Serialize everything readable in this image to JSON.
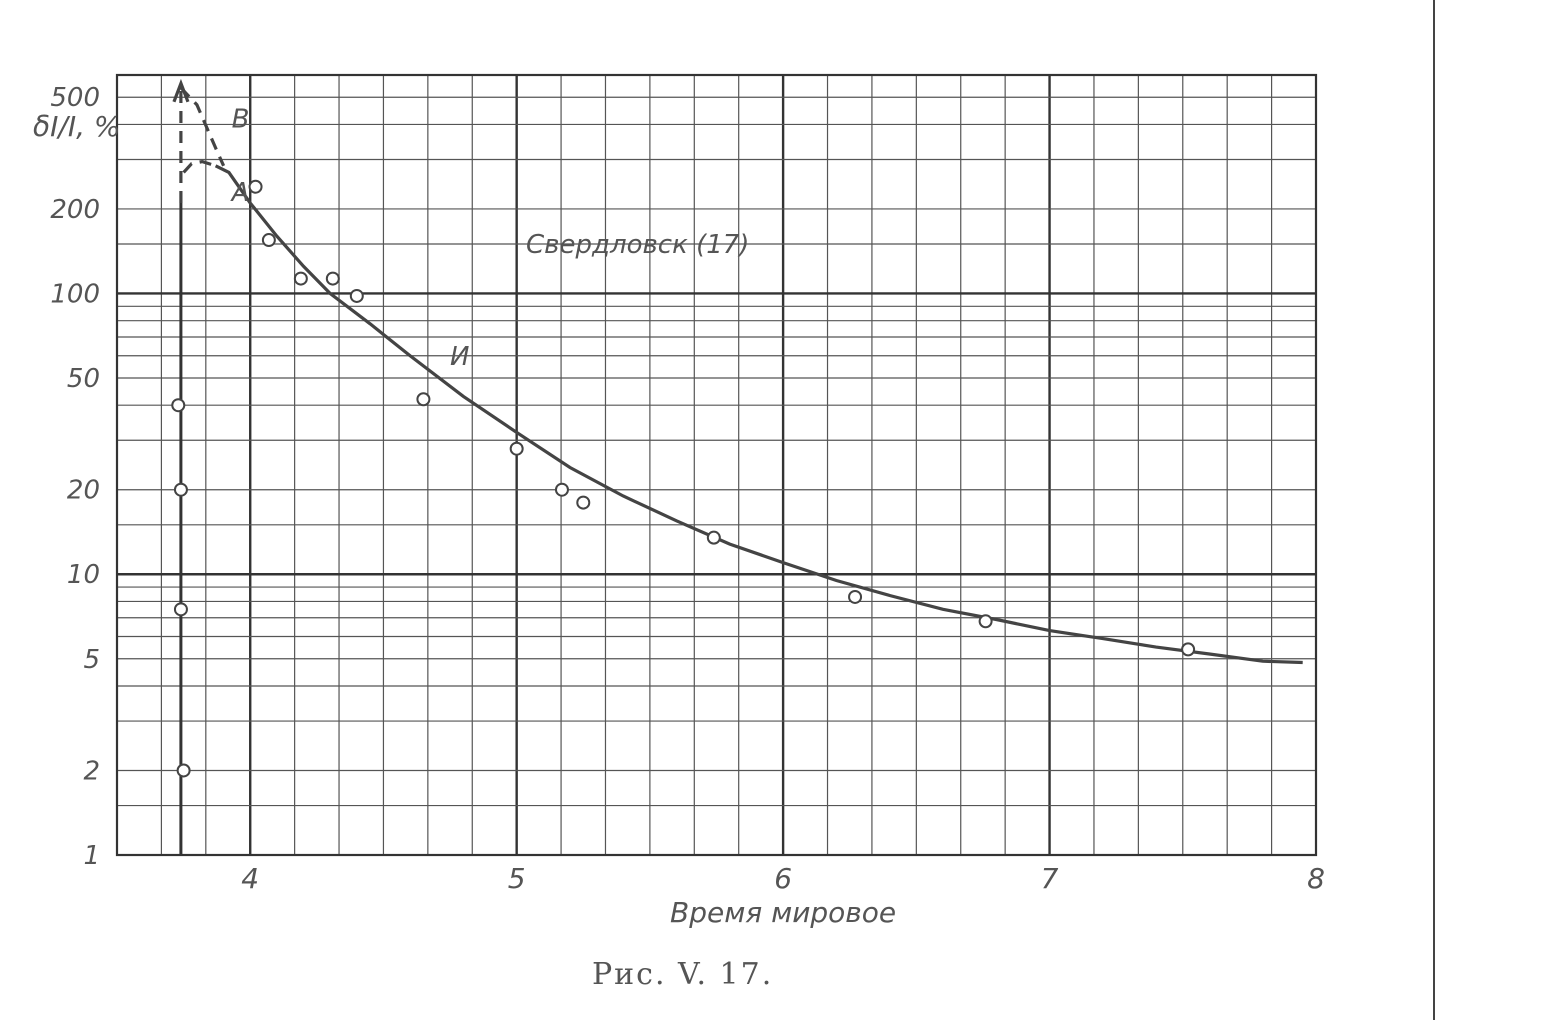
{
  "chart_data": {
    "type": "line",
    "title": "Свердловск (17)",
    "xlabel": "Время мировое",
    "ylabel": "δI/I, %",
    "caption": "Рис. V. 17.",
    "x_ticks": [
      "4",
      "5",
      "6",
      "7",
      "8"
    ],
    "y_ticks": [
      "1",
      "2",
      "5",
      "10",
      "20",
      "50",
      "100",
      "200",
      "500"
    ],
    "y_scale": "log",
    "xlim": [
      3.5,
      8.0
    ],
    "ylim": [
      1,
      600
    ],
    "grid": true,
    "annotations": [
      {
        "label": "В",
        "x": 3.93,
        "y": 420
      },
      {
        "label": "А",
        "x": 3.93,
        "y": 230
      },
      {
        "label": "И",
        "x": 4.75,
        "y": 60
      }
    ],
    "series": [
      {
        "name": "И",
        "kind": "curve",
        "points": [
          [
            3.87,
            285
          ],
          [
            3.92,
            270
          ],
          [
            4.0,
            210
          ],
          [
            4.1,
            160
          ],
          [
            4.2,
            125
          ],
          [
            4.3,
            100
          ],
          [
            4.45,
            78
          ],
          [
            4.6,
            60
          ],
          [
            4.8,
            43
          ],
          [
            5.0,
            32
          ],
          [
            5.2,
            24
          ],
          [
            5.4,
            19
          ],
          [
            5.6,
            15.5
          ],
          [
            5.8,
            12.8
          ],
          [
            6.0,
            11
          ],
          [
            6.2,
            9.5
          ],
          [
            6.4,
            8.4
          ],
          [
            6.6,
            7.5
          ],
          [
            6.8,
            6.9
          ],
          [
            7.0,
            6.3
          ],
          [
            7.2,
            5.9
          ],
          [
            7.4,
            5.5
          ],
          [
            7.6,
            5.2
          ],
          [
            7.8,
            4.9
          ],
          [
            7.95,
            4.85
          ]
        ]
      },
      {
        "name": "А",
        "kind": "dashed",
        "points": [
          [
            3.75,
            270
          ],
          [
            3.78,
            290
          ],
          [
            3.82,
            295
          ],
          [
            3.87,
            285
          ]
        ]
      },
      {
        "name": "В",
        "kind": "dashed",
        "points": [
          [
            3.74,
            540
          ],
          [
            3.8,
            470
          ],
          [
            3.87,
            330
          ],
          [
            3.9,
            285
          ]
        ]
      },
      {
        "name": "",
        "kind": "dashed-vertical",
        "points": [
          [
            3.74,
            210
          ],
          [
            3.74,
            540
          ]
        ]
      },
      {
        "name": "",
        "kind": "vertical",
        "points": [
          [
            3.74,
            1
          ],
          [
            3.74,
            210
          ]
        ]
      },
      {
        "name": "",
        "kind": "scatter",
        "points": [
          [
            3.73,
            40
          ],
          [
            3.74,
            20
          ],
          [
            3.74,
            7.5
          ],
          [
            3.75,
            2
          ],
          [
            4.02,
            240
          ],
          [
            4.07,
            155
          ],
          [
            4.19,
            113
          ],
          [
            4.31,
            113
          ],
          [
            4.4,
            98
          ],
          [
            4.65,
            42
          ],
          [
            5.0,
            28
          ],
          [
            5.17,
            20
          ],
          [
            5.25,
            18
          ],
          [
            5.74,
            13.5
          ],
          [
            6.27,
            8.3
          ],
          [
            6.76,
            6.8
          ],
          [
            7.52,
            5.4
          ]
        ]
      }
    ]
  }
}
